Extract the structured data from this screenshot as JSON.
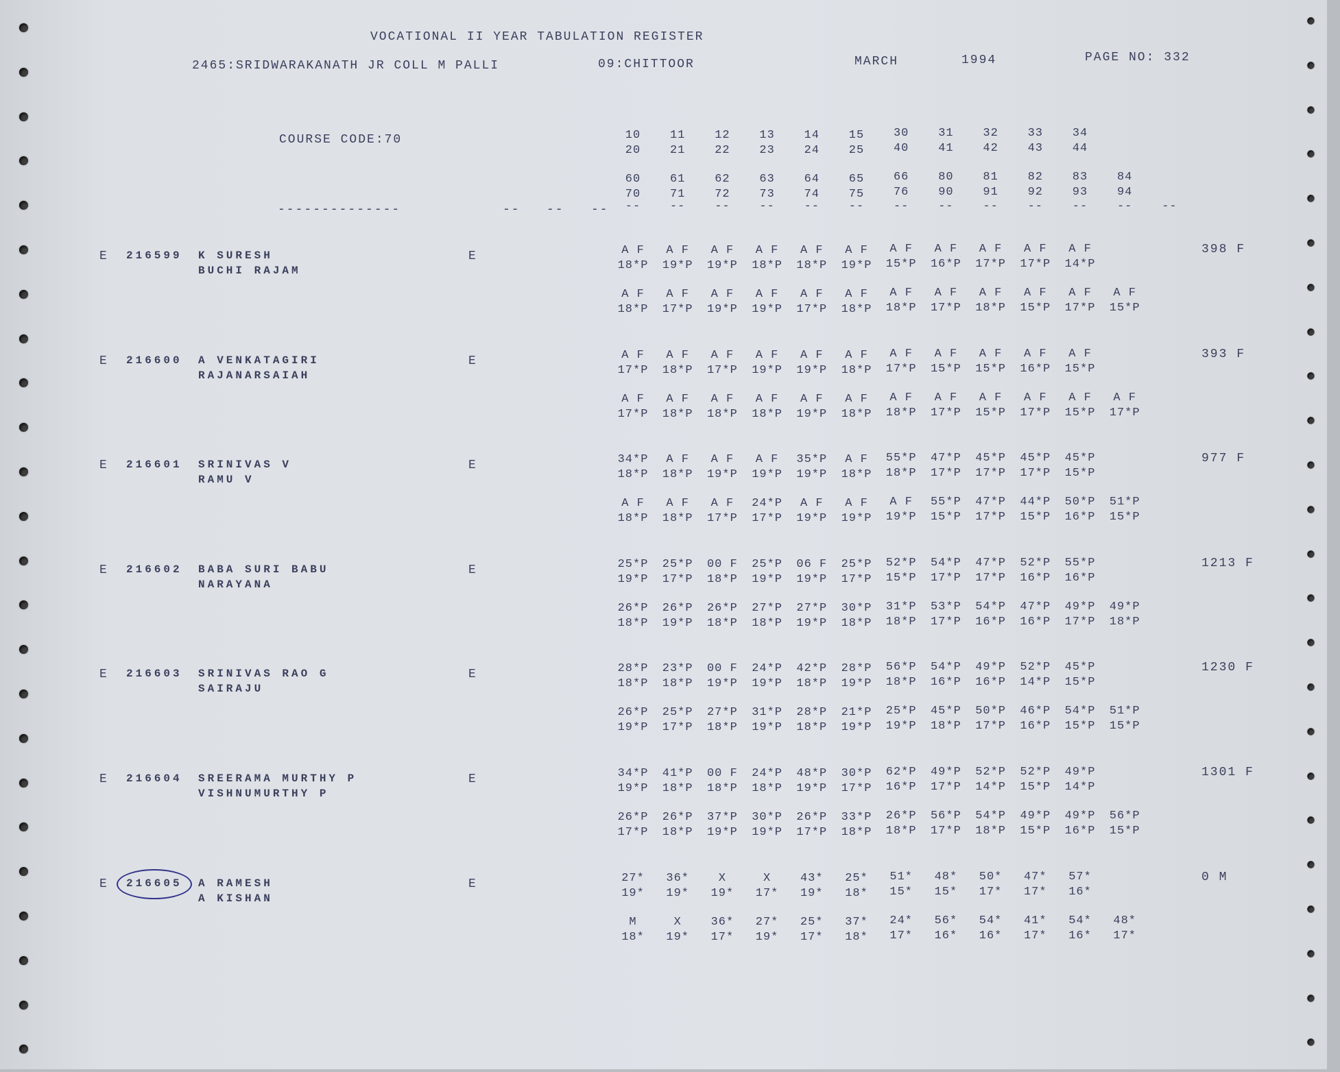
{
  "header": {
    "title": "VOCATIONAL II YEAR TABULATION REGISTER",
    "college": "2465:SRIDWARAKANATH JR COLL M PALLI",
    "district": "09:CHITTOOR",
    "month": "MARCH",
    "year": "1994",
    "page_no": "PAGE NO: 332",
    "course_code": "COURSE CODE:70"
  },
  "column_codes": [
    [
      "10",
      "11",
      "12",
      "13",
      "14",
      "15",
      "30",
      "31",
      "32",
      "33",
      "34"
    ],
    [
      "20",
      "21",
      "22",
      "23",
      "24",
      "25",
      "40",
      "41",
      "42",
      "43",
      "44"
    ],
    [
      "60",
      "61",
      "62",
      "63",
      "64",
      "65",
      "66",
      "80",
      "81",
      "82",
      "83",
      "84"
    ],
    [
      "70",
      "71",
      "72",
      "73",
      "74",
      "75",
      "76",
      "90",
      "91",
      "92",
      "93",
      "94"
    ]
  ],
  "separators": {
    "long": "--------------",
    "short": "--"
  },
  "records": [
    {
      "prefix": "E",
      "roll": "216599",
      "name": "K SURESH",
      "father": "BUCHI RAJAM",
      "medium": "E",
      "total": "398 F",
      "marks": [
        [
          "A F",
          "A F",
          "A F",
          "A F",
          "A F",
          "A F",
          "A F",
          "A F",
          "A F",
          "A F",
          "A F"
        ],
        [
          "18*P",
          "19*P",
          "19*P",
          "18*P",
          "18*P",
          "19*P",
          "15*P",
          "16*P",
          "17*P",
          "17*P",
          "14*P"
        ],
        [
          "A F",
          "A F",
          "A F",
          "A F",
          "A F",
          "A F",
          "A F",
          "A F",
          "A F",
          "A F",
          "A F",
          "A F"
        ],
        [
          "18*P",
          "17*P",
          "19*P",
          "19*P",
          "17*P",
          "18*P",
          "18*P",
          "17*P",
          "18*P",
          "15*P",
          "17*P",
          "15*P"
        ]
      ]
    },
    {
      "prefix": "E",
      "roll": "216600",
      "name": "A VENKATAGIRI",
      "father": "RAJANARSAIAH",
      "medium": "E",
      "total": "393 F",
      "marks": [
        [
          "A F",
          "A F",
          "A F",
          "A F",
          "A F",
          "A F",
          "A F",
          "A F",
          "A F",
          "A F",
          "A F"
        ],
        [
          "17*P",
          "18*P",
          "17*P",
          "19*P",
          "19*P",
          "18*P",
          "17*P",
          "15*P",
          "15*P",
          "16*P",
          "15*P"
        ],
        [
          "A F",
          "A F",
          "A F",
          "A F",
          "A F",
          "A F",
          "A F",
          "A F",
          "A F",
          "A F",
          "A F",
          "A F"
        ],
        [
          "17*P",
          "18*P",
          "18*P",
          "18*P",
          "19*P",
          "18*P",
          "18*P",
          "17*P",
          "15*P",
          "17*P",
          "15*P",
          "17*P"
        ]
      ]
    },
    {
      "prefix": "E",
      "roll": "216601",
      "name": "SRINIVAS V",
      "father": "RAMU V",
      "medium": "E",
      "total": "977 F",
      "marks": [
        [
          "34*P",
          "A F",
          "A F",
          "A F",
          "35*P",
          "A F",
          "55*P",
          "47*P",
          "45*P",
          "45*P",
          "45*P"
        ],
        [
          "18*P",
          "18*P",
          "19*P",
          "19*P",
          "19*P",
          "18*P",
          "18*P",
          "17*P",
          "17*P",
          "17*P",
          "15*P"
        ],
        [
          "A F",
          "A F",
          "A F",
          "24*P",
          "A F",
          "A F",
          "A F",
          "55*P",
          "47*P",
          "44*P",
          "50*P",
          "51*P"
        ],
        [
          "18*P",
          "18*P",
          "17*P",
          "17*P",
          "19*P",
          "19*P",
          "19*P",
          "15*P",
          "17*P",
          "15*P",
          "16*P",
          "15*P"
        ]
      ]
    },
    {
      "prefix": "E",
      "roll": "216602",
      "name": "BABA SURI BABU",
      "father": "NARAYANA",
      "medium": "E",
      "total": "1213 F",
      "marks": [
        [
          "25*P",
          "25*P",
          "00 F",
          "25*P",
          "06 F",
          "25*P",
          "52*P",
          "54*P",
          "47*P",
          "52*P",
          "55*P"
        ],
        [
          "19*P",
          "17*P",
          "18*P",
          "19*P",
          "19*P",
          "17*P",
          "15*P",
          "17*P",
          "17*P",
          "16*P",
          "16*P"
        ],
        [
          "26*P",
          "26*P",
          "26*P",
          "27*P",
          "27*P",
          "30*P",
          "31*P",
          "53*P",
          "54*P",
          "47*P",
          "49*P",
          "49*P"
        ],
        [
          "18*P",
          "19*P",
          "18*P",
          "18*P",
          "19*P",
          "18*P",
          "18*P",
          "17*P",
          "16*P",
          "16*P",
          "17*P",
          "18*P"
        ]
      ]
    },
    {
      "prefix": "E",
      "roll": "216603",
      "name": "SRINIVAS RAO G",
      "father": "SAIRAJU",
      "medium": "E",
      "total": "1230 F",
      "marks": [
        [
          "28*P",
          "23*P",
          "00 F",
          "24*P",
          "42*P",
          "28*P",
          "56*P",
          "54*P",
          "49*P",
          "52*P",
          "45*P"
        ],
        [
          "18*P",
          "18*P",
          "19*P",
          "19*P",
          "18*P",
          "19*P",
          "18*P",
          "16*P",
          "16*P",
          "14*P",
          "15*P"
        ],
        [
          "26*P",
          "25*P",
          "27*P",
          "31*P",
          "28*P",
          "21*P",
          "25*P",
          "45*P",
          "50*P",
          "46*P",
          "54*P",
          "51*P"
        ],
        [
          "19*P",
          "17*P",
          "18*P",
          "19*P",
          "18*P",
          "19*P",
          "19*P",
          "18*P",
          "17*P",
          "16*P",
          "15*P",
          "15*P"
        ]
      ]
    },
    {
      "prefix": "E",
      "roll": "216604",
      "name": "SREERAMA MURTHY P",
      "father": "VISHNUMURTHY P",
      "medium": "E",
      "total": "1301 F",
      "marks": [
        [
          "34*P",
          "41*P",
          "00 F",
          "24*P",
          "48*P",
          "30*P",
          "62*P",
          "49*P",
          "52*P",
          "52*P",
          "49*P"
        ],
        [
          "19*P",
          "18*P",
          "18*P",
          "18*P",
          "19*P",
          "17*P",
          "16*P",
          "17*P",
          "14*P",
          "15*P",
          "14*P"
        ],
        [
          "26*P",
          "26*P",
          "37*P",
          "30*P",
          "26*P",
          "33*P",
          "26*P",
          "56*P",
          "54*P",
          "49*P",
          "49*P",
          "56*P"
        ],
        [
          "17*P",
          "18*P",
          "19*P",
          "19*P",
          "17*P",
          "18*P",
          "18*P",
          "17*P",
          "18*P",
          "15*P",
          "16*P",
          "15*P"
        ]
      ]
    },
    {
      "prefix": "E",
      "roll": "216605",
      "name": "A RAMESH",
      "father": "A KISHAN",
      "medium": "E",
      "total": "0 M",
      "circled": true,
      "marks": [
        [
          "27*",
          "36*",
          "X",
          "X",
          "43*",
          "25*",
          "51*",
          "48*",
          "50*",
          "47*",
          "57*"
        ],
        [
          "19*",
          "19*",
          "19*",
          "17*",
          "19*",
          "18*",
          "15*",
          "15*",
          "17*",
          "17*",
          "16*"
        ],
        [
          "M",
          "X",
          "36*",
          "27*",
          "25*",
          "37*",
          "24*",
          "56*",
          "54*",
          "41*",
          "54*",
          "48*"
        ],
        [
          "18*",
          "19*",
          "17*",
          "19*",
          "17*",
          "18*",
          "17*",
          "16*",
          "16*",
          "17*",
          "16*",
          "17*"
        ]
      ]
    }
  ],
  "colors": {
    "paper": "#dde1e6",
    "ink": "#3b3f5c",
    "pen": "#34348a"
  }
}
